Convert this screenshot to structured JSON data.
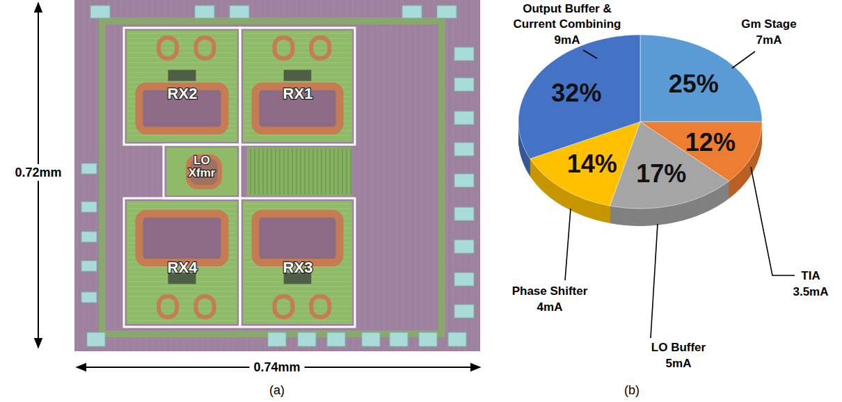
{
  "chart_data": {
    "type": "pie",
    "categories": [
      "Gm Stage",
      "TIA",
      "LO Buffer",
      "Phase Shifter",
      "Output Buffer & Current Combining"
    ],
    "values": [
      25,
      12,
      17,
      14,
      32
    ],
    "value_labels": [
      "25%",
      "12%",
      "17%",
      "14%",
      "32%"
    ],
    "currents": [
      7,
      3.5,
      5,
      4,
      9
    ],
    "current_labels": [
      "7mA",
      "3.5mA",
      "5mA",
      "4mA",
      "9mA"
    ],
    "colors": [
      "#5b9bd5",
      "#ed7d31",
      "#a5a5a5",
      "#ffc000",
      "#4472c4"
    ],
    "data_labels": true
  },
  "micrograph": {
    "height_label": "0.72mm",
    "width_label": "0.74mm",
    "blocks": [
      "RX2",
      "RX1",
      "LO Xfmr",
      "RX4",
      "RX3"
    ]
  },
  "captions": [
    "(a)",
    "(b)"
  ]
}
